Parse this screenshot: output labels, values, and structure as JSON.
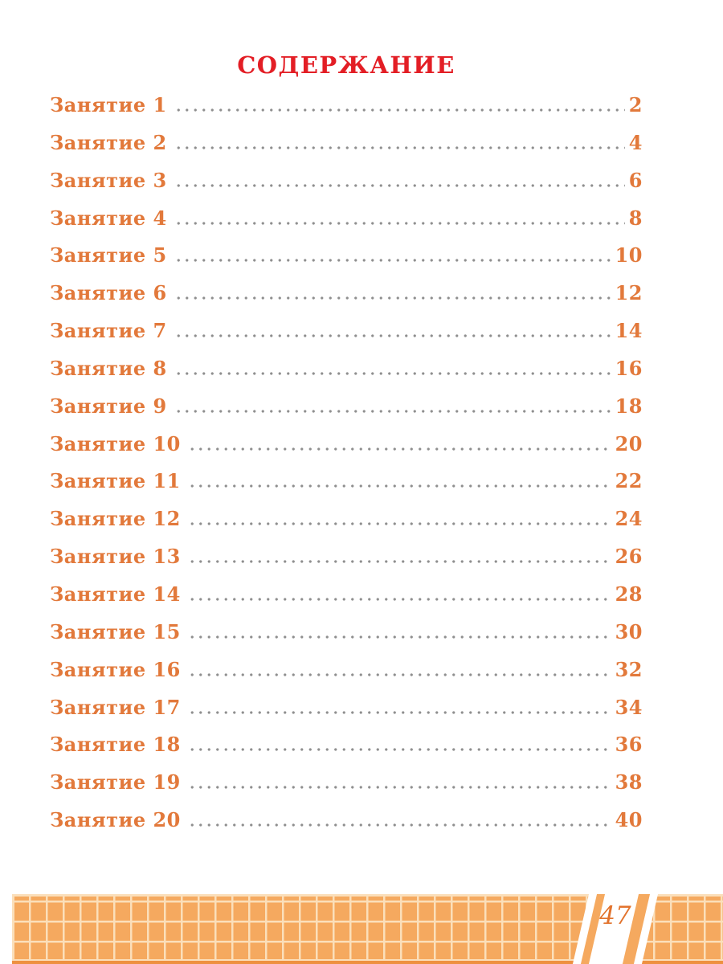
{
  "title": "СОДЕРЖАНИЕ",
  "toc": {
    "entries": [
      {
        "label": "Занятие 1",
        "page": "2"
      },
      {
        "label": "Занятие 2",
        "page": "4"
      },
      {
        "label": "Занятие 3",
        "page": "6"
      },
      {
        "label": "Занятие 4",
        "page": "8"
      },
      {
        "label": "Занятие 5",
        "page": "10"
      },
      {
        "label": "Занятие 6",
        "page": "12"
      },
      {
        "label": "Занятие 7",
        "page": "14"
      },
      {
        "label": "Занятие 8",
        "page": "16"
      },
      {
        "label": "Занятие 9",
        "page": "18"
      },
      {
        "label": "Занятие 10",
        "page": "20"
      },
      {
        "label": "Занятие 11",
        "page": "22"
      },
      {
        "label": "Занятие 12",
        "page": "24"
      },
      {
        "label": "Занятие 13",
        "page": "26"
      },
      {
        "label": "Занятие 14",
        "page": "28"
      },
      {
        "label": "Занятие 15",
        "page": "30"
      },
      {
        "label": "Занятие 16",
        "page": "32"
      },
      {
        "label": "Занятие 17",
        "page": "34"
      },
      {
        "label": "Занятие 18",
        "page": "36"
      },
      {
        "label": "Занятие 19",
        "page": "38"
      },
      {
        "label": "Занятие 20",
        "page": "40"
      }
    ]
  },
  "footer": {
    "page_number": "47"
  },
  "colors": {
    "title": "#e31e25",
    "entry": "#e2793b",
    "dots": "#8f8f8f",
    "footer_cell": "#f5a95f",
    "footer_line": "#fbdfba",
    "footer_bar": "#ee9140",
    "page_number": "#e2732d"
  }
}
